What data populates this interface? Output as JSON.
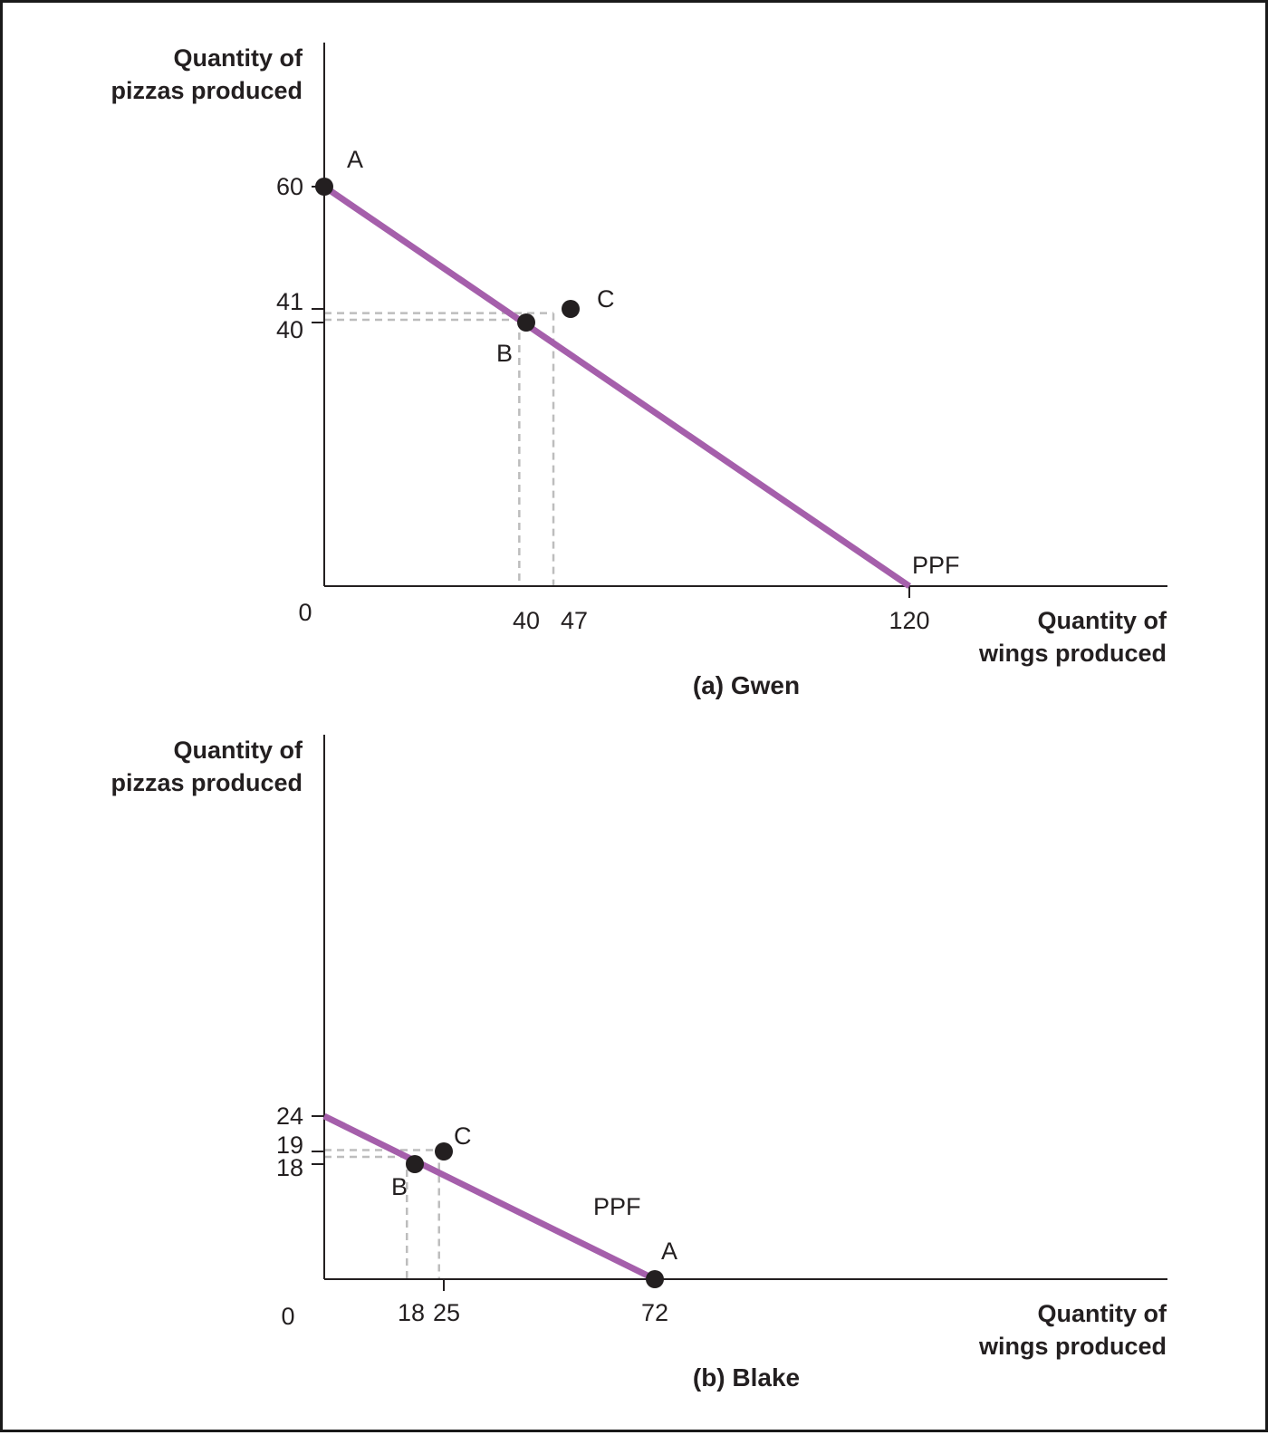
{
  "chart_data": [
    {
      "type": "line",
      "title": "(a) Gwen",
      "ylabel_lines": [
        "Quantity of",
        "pizzas produced"
      ],
      "xlabel_lines": [
        "Quantity of",
        "wings produced"
      ],
      "origin_label": "0",
      "curve_label": "PPF",
      "ppf": {
        "x": [
          0,
          120
        ],
        "y": [
          60,
          0
        ]
      },
      "x_ticks": [
        "40",
        "47",
        "120"
      ],
      "y_ticks": [
        "60",
        "41",
        "40"
      ],
      "points": [
        {
          "label": "A",
          "x": 0,
          "y": 60
        },
        {
          "label": "B",
          "x": 40,
          "y": 40
        },
        {
          "label": "C",
          "x": 47,
          "y": 41
        }
      ],
      "colors": {
        "curve": "#a55fab",
        "point": "#231f20",
        "axis": "#231f20",
        "guide": "#bdbdbd"
      }
    },
    {
      "type": "line",
      "title": "(b) Blake",
      "ylabel_lines": [
        "Quantity of",
        "pizzas produced"
      ],
      "xlabel_lines": [
        "Quantity of",
        "wings produced"
      ],
      "origin_label": "0",
      "curve_label": "PPF",
      "ppf": {
        "x": [
          0,
          72
        ],
        "y": [
          24,
          0
        ]
      },
      "x_ticks": [
        "18",
        "25",
        "72"
      ],
      "y_ticks": [
        "24",
        "19",
        "18"
      ],
      "points": [
        {
          "label": "A",
          "x": 72,
          "y": 0
        },
        {
          "label": "B",
          "x": 18,
          "y": 18
        },
        {
          "label": "C",
          "x": 25,
          "y": 19
        }
      ],
      "colors": {
        "curve": "#a55fab",
        "point": "#231f20",
        "axis": "#231f20",
        "guide": "#bdbdbd"
      }
    }
  ]
}
